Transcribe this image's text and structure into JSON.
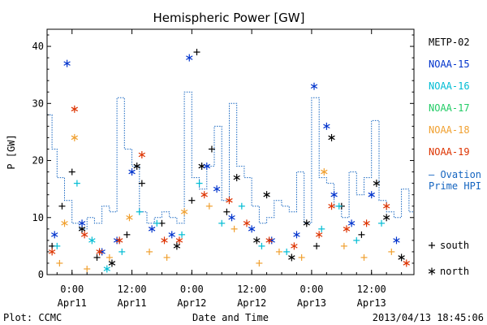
{
  "chart_data": {
    "type": "scatter",
    "title": "Hemispheric Power [GW]",
    "ylabel": "P [GW]",
    "xlabel": "Date and Time",
    "footer_left": "Plot: CCMC",
    "footer_right": "2013/04/13 18:45:06",
    "ylim": [
      0,
      43
    ],
    "xlim": [
      "2013-04-10T19:00",
      "2013-04-13T20:30"
    ],
    "yticks": [
      0,
      10,
      20,
      30,
      40
    ],
    "xticks": [
      {
        "x": "2013-04-11T00:00",
        "time": "0:00",
        "date": "Apr11"
      },
      {
        "x": "2013-04-11T12:00",
        "time": "12:00",
        "date": "Apr11"
      },
      {
        "x": "2013-04-12T00:00",
        "time": "0:00",
        "date": "Apr12"
      },
      {
        "x": "2013-04-12T12:00",
        "time": "12:00",
        "date": "Apr12"
      },
      {
        "x": "2013-04-13T00:00",
        "time": "0:00",
        "date": "Apr13"
      },
      {
        "x": "2013-04-13T12:00",
        "time": "12:00",
        "date": "Apr13"
      }
    ],
    "legend": {
      "placement": "right",
      "satellites": [
        {
          "name": "METP-02",
          "color": "#000000"
        },
        {
          "name": "NOAA-15",
          "color": "#0033cc"
        },
        {
          "name": "NOAA-16",
          "color": "#00bcd4"
        },
        {
          "name": "NOAA-17",
          "color": "#22cc66"
        },
        {
          "name": "NOAA-18",
          "color": "#f0a030"
        },
        {
          "name": "NOAA-19",
          "color": "#dd3300"
        }
      ],
      "model_label": [
        "– Ovation",
        "Prime HPI"
      ],
      "model_color": "#1565c0",
      "markers": [
        {
          "symbol": "+",
          "label": "south"
        },
        {
          "symbol": "*",
          "label": "north"
        }
      ]
    },
    "ovation": {
      "name": "Ovation Prime HPI",
      "color": "#1565c0",
      "style": "step-dotted",
      "x": [
        "2013-04-10T19:00",
        "2013-04-10T20:00",
        "2013-04-10T21:00",
        "2013-04-10T22:30",
        "2013-04-11T00:00",
        "2013-04-11T01:30",
        "2013-04-11T03:00",
        "2013-04-11T04:30",
        "2013-04-11T06:00",
        "2013-04-11T07:30",
        "2013-04-11T09:00",
        "2013-04-11T10:30",
        "2013-04-11T12:00",
        "2013-04-11T13:30",
        "2013-04-11T15:00",
        "2013-04-11T16:30",
        "2013-04-11T18:00",
        "2013-04-11T19:30",
        "2013-04-11T21:00",
        "2013-04-11T22:30",
        "2013-04-12T00:00",
        "2013-04-12T01:30",
        "2013-04-12T03:00",
        "2013-04-12T04:30",
        "2013-04-12T06:00",
        "2013-04-12T07:30",
        "2013-04-12T09:00",
        "2013-04-12T10:30",
        "2013-04-12T12:00",
        "2013-04-12T13:30",
        "2013-04-12T15:00",
        "2013-04-12T16:30",
        "2013-04-12T18:00",
        "2013-04-12T19:30",
        "2013-04-12T21:00",
        "2013-04-12T22:30",
        "2013-04-13T00:00",
        "2013-04-13T01:30",
        "2013-04-13T03:00",
        "2013-04-13T04:30",
        "2013-04-13T06:00",
        "2013-04-13T07:30",
        "2013-04-13T09:00",
        "2013-04-13T10:30",
        "2013-04-13T12:00",
        "2013-04-13T13:30",
        "2013-04-13T15:00",
        "2013-04-13T16:30",
        "2013-04-13T18:00",
        "2013-04-13T19:30"
      ],
      "y": [
        28,
        22,
        17,
        13,
        9,
        8,
        10,
        9,
        12,
        11,
        31,
        22,
        19,
        11,
        9,
        10,
        11,
        10,
        9,
        32,
        17,
        15,
        19,
        26,
        13,
        30,
        19,
        17,
        12,
        9,
        10,
        13,
        12,
        11,
        18,
        9,
        31,
        17,
        16,
        12,
        10,
        18,
        14,
        17,
        27,
        13,
        11,
        10,
        15,
        11
      ]
    },
    "series": [
      {
        "name": "METP-02",
        "color": "#000000",
        "points": [
          {
            "x": "2013-04-10T20:00",
            "y": 5,
            "m": "+"
          },
          {
            "x": "2013-04-10T22:00",
            "y": 12,
            "m": "+"
          },
          {
            "x": "2013-04-11T00:00",
            "y": 18,
            "m": "+"
          },
          {
            "x": "2013-04-11T02:00",
            "y": 8,
            "m": "*"
          },
          {
            "x": "2013-04-11T05:00",
            "y": 3,
            "m": "+"
          },
          {
            "x": "2013-04-11T08:00",
            "y": 2,
            "m": "*"
          },
          {
            "x": "2013-04-11T11:00",
            "y": 7,
            "m": "+"
          },
          {
            "x": "2013-04-11T13:00",
            "y": 19,
            "m": "*"
          },
          {
            "x": "2013-04-11T14:00",
            "y": 16,
            "m": "+"
          },
          {
            "x": "2013-04-11T18:00",
            "y": 9,
            "m": "+"
          },
          {
            "x": "2013-04-11T21:00",
            "y": 5,
            "m": "*"
          },
          {
            "x": "2013-04-12T00:00",
            "y": 13,
            "m": "+"
          },
          {
            "x": "2013-04-12T01:00",
            "y": 39,
            "m": "+"
          },
          {
            "x": "2013-04-12T02:00",
            "y": 19,
            "m": "*"
          },
          {
            "x": "2013-04-12T04:00",
            "y": 22,
            "m": "+"
          },
          {
            "x": "2013-04-12T07:00",
            "y": 11,
            "m": "+"
          },
          {
            "x": "2013-04-12T09:00",
            "y": 17,
            "m": "*"
          },
          {
            "x": "2013-04-12T13:00",
            "y": 6,
            "m": "*"
          },
          {
            "x": "2013-04-12T15:00",
            "y": 14,
            "m": "*"
          },
          {
            "x": "2013-04-12T20:00",
            "y": 3,
            "m": "*"
          },
          {
            "x": "2013-04-12T23:00",
            "y": 9,
            "m": "*"
          },
          {
            "x": "2013-04-13T01:00",
            "y": 5,
            "m": "+"
          },
          {
            "x": "2013-04-13T04:00",
            "y": 24,
            "m": "*"
          },
          {
            "x": "2013-04-13T06:00",
            "y": 12,
            "m": "+"
          },
          {
            "x": "2013-04-13T10:00",
            "y": 7,
            "m": "+"
          },
          {
            "x": "2013-04-13T13:00",
            "y": 16,
            "m": "*"
          },
          {
            "x": "2013-04-13T15:00",
            "y": 10,
            "m": "*"
          },
          {
            "x": "2013-04-13T18:00",
            "y": 3,
            "m": "*"
          }
        ]
      },
      {
        "name": "NOAA-15",
        "color": "#0033cc",
        "points": [
          {
            "x": "2013-04-10T20:30",
            "y": 7,
            "m": "*"
          },
          {
            "x": "2013-04-10T23:00",
            "y": 37,
            "m": "*"
          },
          {
            "x": "2013-04-11T02:00",
            "y": 9,
            "m": "*"
          },
          {
            "x": "2013-04-11T06:00",
            "y": 4,
            "m": "*"
          },
          {
            "x": "2013-04-11T09:00",
            "y": 6,
            "m": "*"
          },
          {
            "x": "2013-04-11T12:00",
            "y": 18,
            "m": "*"
          },
          {
            "x": "2013-04-11T16:00",
            "y": 8,
            "m": "*"
          },
          {
            "x": "2013-04-11T20:00",
            "y": 7,
            "m": "*"
          },
          {
            "x": "2013-04-11T23:30",
            "y": 38,
            "m": "*"
          },
          {
            "x": "2013-04-12T03:00",
            "y": 19,
            "m": "*"
          },
          {
            "x": "2013-04-12T05:00",
            "y": 15,
            "m": "*"
          },
          {
            "x": "2013-04-12T08:00",
            "y": 10,
            "m": "*"
          },
          {
            "x": "2013-04-12T12:00",
            "y": 8,
            "m": "*"
          },
          {
            "x": "2013-04-12T16:00",
            "y": 6,
            "m": "*"
          },
          {
            "x": "2013-04-12T21:00",
            "y": 7,
            "m": "*"
          },
          {
            "x": "2013-04-13T00:30",
            "y": 33,
            "m": "*"
          },
          {
            "x": "2013-04-13T03:00",
            "y": 26,
            "m": "*"
          },
          {
            "x": "2013-04-13T04:30",
            "y": 14,
            "m": "*"
          },
          {
            "x": "2013-04-13T08:00",
            "y": 9,
            "m": "*"
          },
          {
            "x": "2013-04-13T12:00",
            "y": 14,
            "m": "*"
          },
          {
            "x": "2013-04-13T17:00",
            "y": 6,
            "m": "*"
          }
        ]
      },
      {
        "name": "NOAA-16",
        "color": "#00bcd4",
        "points": [
          {
            "x": "2013-04-10T21:00",
            "y": 5,
            "m": "+"
          },
          {
            "x": "2013-04-11T01:00",
            "y": 16,
            "m": "+"
          },
          {
            "x": "2013-04-11T04:00",
            "y": 6,
            "m": "*"
          },
          {
            "x": "2013-04-11T07:00",
            "y": 1,
            "m": "*"
          },
          {
            "x": "2013-04-11T10:00",
            "y": 4,
            "m": "+"
          },
          {
            "x": "2013-04-11T13:30",
            "y": 11,
            "m": "+"
          },
          {
            "x": "2013-04-11T17:00",
            "y": 9,
            "m": "+"
          },
          {
            "x": "2013-04-11T22:00",
            "y": 7,
            "m": "+"
          },
          {
            "x": "2013-04-12T01:30",
            "y": 16,
            "m": "+"
          },
          {
            "x": "2013-04-12T06:00",
            "y": 9,
            "m": "+"
          },
          {
            "x": "2013-04-12T10:00",
            "y": 12,
            "m": "+"
          },
          {
            "x": "2013-04-12T14:00",
            "y": 5,
            "m": "+"
          },
          {
            "x": "2013-04-12T19:00",
            "y": 4,
            "m": "+"
          },
          {
            "x": "2013-04-13T02:00",
            "y": 8,
            "m": "+"
          },
          {
            "x": "2013-04-13T05:30",
            "y": 12,
            "m": "+"
          },
          {
            "x": "2013-04-13T09:00",
            "y": 6,
            "m": "+"
          },
          {
            "x": "2013-04-13T14:00",
            "y": 9,
            "m": "+"
          }
        ]
      },
      {
        "name": "NOAA-18",
        "color": "#f0a030",
        "points": [
          {
            "x": "2013-04-10T21:30",
            "y": 2,
            "m": "+"
          },
          {
            "x": "2013-04-10T22:30",
            "y": 9,
            "m": "*"
          },
          {
            "x": "2013-04-11T00:30",
            "y": 24,
            "m": "*"
          },
          {
            "x": "2013-04-11T03:00",
            "y": 1,
            "m": "+"
          },
          {
            "x": "2013-04-11T07:30",
            "y": 3,
            "m": "+"
          },
          {
            "x": "2013-04-11T11:30",
            "y": 10,
            "m": "*"
          },
          {
            "x": "2013-04-11T15:30",
            "y": 4,
            "m": "+"
          },
          {
            "x": "2013-04-11T19:00",
            "y": 3,
            "m": "+"
          },
          {
            "x": "2013-04-11T22:30",
            "y": 11,
            "m": "*"
          },
          {
            "x": "2013-04-12T03:30",
            "y": 12,
            "m": "+"
          },
          {
            "x": "2013-04-12T08:30",
            "y": 8,
            "m": "+"
          },
          {
            "x": "2013-04-12T13:30",
            "y": 2,
            "m": "+"
          },
          {
            "x": "2013-04-12T17:30",
            "y": 4,
            "m": "+"
          },
          {
            "x": "2013-04-12T22:00",
            "y": 3,
            "m": "+"
          },
          {
            "x": "2013-04-13T02:30",
            "y": 18,
            "m": "*"
          },
          {
            "x": "2013-04-13T06:30",
            "y": 5,
            "m": "+"
          },
          {
            "x": "2013-04-13T10:30",
            "y": 3,
            "m": "+"
          },
          {
            "x": "2013-04-13T16:00",
            "y": 4,
            "m": "+"
          }
        ]
      },
      {
        "name": "NOAA-19",
        "color": "#dd3300",
        "points": [
          {
            "x": "2013-04-10T20:00",
            "y": 4,
            "m": "*"
          },
          {
            "x": "2013-04-11T00:30",
            "y": 29,
            "m": "*"
          },
          {
            "x": "2013-04-11T02:30",
            "y": 7,
            "m": "*"
          },
          {
            "x": "2013-04-11T05:30",
            "y": 4,
            "m": "*"
          },
          {
            "x": "2013-04-11T09:30",
            "y": 6,
            "m": "*"
          },
          {
            "x": "2013-04-11T14:00",
            "y": 21,
            "m": "*"
          },
          {
            "x": "2013-04-11T18:30",
            "y": 6,
            "m": "*"
          },
          {
            "x": "2013-04-11T21:30",
            "y": 6,
            "m": "*"
          },
          {
            "x": "2013-04-12T02:30",
            "y": 14,
            "m": "*"
          },
          {
            "x": "2013-04-12T07:30",
            "y": 13,
            "m": "*"
          },
          {
            "x": "2013-04-12T11:00",
            "y": 9,
            "m": "*"
          },
          {
            "x": "2013-04-12T15:30",
            "y": 6,
            "m": "*"
          },
          {
            "x": "2013-04-12T20:30",
            "y": 5,
            "m": "*"
          },
          {
            "x": "2013-04-13T01:30",
            "y": 7,
            "m": "*"
          },
          {
            "x": "2013-04-13T04:00",
            "y": 12,
            "m": "*"
          },
          {
            "x": "2013-04-13T07:00",
            "y": 8,
            "m": "*"
          },
          {
            "x": "2013-04-13T11:00",
            "y": 9,
            "m": "*"
          },
          {
            "x": "2013-04-13T15:00",
            "y": 12,
            "m": "*"
          },
          {
            "x": "2013-04-13T19:00",
            "y": 2,
            "m": "*"
          }
        ]
      }
    ]
  }
}
